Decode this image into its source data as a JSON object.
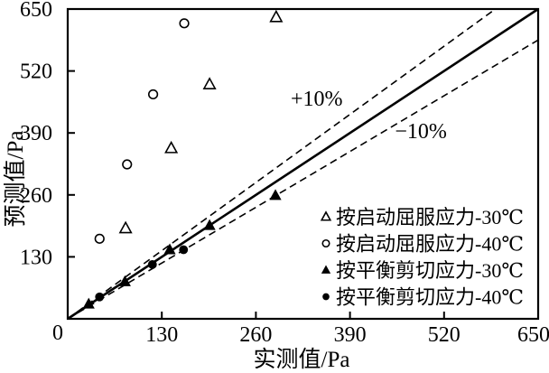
{
  "figure": {
    "background": "#ffffff",
    "foreground": "#000000"
  },
  "chart_data": {
    "type": "scatter",
    "title": "",
    "xlabel": "实测值/Pa",
    "ylabel": "预测值/Pa",
    "xlim": [
      0,
      650
    ],
    "ylim": [
      0,
      650
    ],
    "xticks": [
      130,
      260,
      390,
      520,
      650
    ],
    "yticks": [
      130,
      260,
      390,
      520,
      650
    ],
    "origin_tick_label": "0",
    "grid": false,
    "legend_position": "lower-right",
    "series": [
      {
        "name": "按启动屈服应力-30℃",
        "marker": "triangle-open",
        "points": [
          [
            80,
            190
          ],
          [
            143,
            358
          ],
          [
            196,
            492
          ],
          [
            288,
            633
          ]
        ]
      },
      {
        "name": "按启动屈服应力-40℃",
        "marker": "circle-open",
        "points": [
          [
            44,
            168
          ],
          [
            82,
            324
          ],
          [
            118,
            471
          ],
          [
            161,
            620
          ]
        ]
      },
      {
        "name": "按平衡剪切应力-30℃",
        "marker": "triangle-filled",
        "points": [
          [
            29,
            31
          ],
          [
            79,
            78
          ],
          [
            141,
            145
          ],
          [
            196,
            196
          ],
          [
            287,
            259
          ]
        ]
      },
      {
        "name": "按平衡剪切应力-40℃",
        "marker": "circle-filled",
        "points": [
          [
            44,
            46
          ],
          [
            117,
            114
          ],
          [
            160,
            145
          ]
        ]
      }
    ],
    "reference_lines": [
      {
        "name": "identity",
        "slope": 1.0,
        "style": "solid",
        "label": ""
      },
      {
        "name": "plus-10-percent",
        "slope": 1.1,
        "style": "dashed",
        "label": "+10%",
        "label_at": [
          344,
          447
        ]
      },
      {
        "name": "minus-10-percent",
        "slope": 0.9,
        "style": "dashed",
        "label": "−10%",
        "label_at": [
          488,
          379
        ]
      }
    ]
  }
}
